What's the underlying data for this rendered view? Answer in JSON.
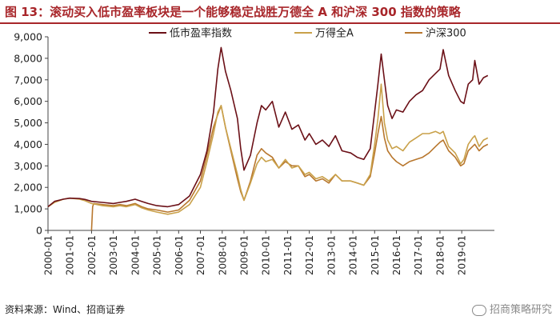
{
  "title": "图 13：滚动买入低市盈率板块是一个能够稳定战胜万德全 A 和沪深 300 指数的策略",
  "source": "资料来源：Wind、招商证券",
  "watermark": "招商策略研究",
  "chart_data": {
    "type": "line",
    "title": "图 13：滚动买入低市盈率板块是一个能够稳定战胜万德全 A 和沪深 300 指数的策略",
    "xlabel": "",
    "ylabel": "",
    "ylim": [
      0,
      9000
    ],
    "yticks": [
      0,
      1000,
      2000,
      3000,
      4000,
      5000,
      6000,
      7000,
      8000,
      9000
    ],
    "ytick_labels": [
      "0",
      "1,000",
      "2,000",
      "3,000",
      "4,000",
      "5,000",
      "6,000",
      "7,000",
      "8,000",
      "9,000"
    ],
    "xlim": [
      2000.0,
      2020.5
    ],
    "xticks": [
      "2000-01",
      "2001-01",
      "2002-01",
      "2003-01",
      "2004-01",
      "2005-01",
      "2006-01",
      "2007-01",
      "2008-01",
      "2009-01",
      "2010-01",
      "2011-01",
      "2012-01",
      "2013-01",
      "2014-01",
      "2015-01",
      "2016-01",
      "2017-01",
      "2018-01",
      "2019-01"
    ],
    "grid": false,
    "legend_position": "top",
    "series": [
      {
        "name": "低市盈率指数",
        "color": "#6b1017",
        "x": [
          2000.0,
          2000.3,
          2000.7,
          2001.0,
          2001.45,
          2001.7,
          2002.0,
          2002.5,
          2003.0,
          2003.3,
          2003.6,
          2004.0,
          2004.3,
          2004.6,
          2005.0,
          2005.5,
          2006.0,
          2006.5,
          2007.0,
          2007.3,
          2007.6,
          2007.8,
          2007.95,
          2008.15,
          2008.4,
          2008.7,
          2008.85,
          2009.0,
          2009.3,
          2009.6,
          2009.8,
          2010.0,
          2010.3,
          2010.6,
          2010.9,
          2011.2,
          2011.5,
          2011.8,
          2012.0,
          2012.3,
          2012.6,
          2012.9,
          2013.2,
          2013.5,
          2013.9,
          2014.2,
          2014.5,
          2014.8,
          2015.0,
          2015.15,
          2015.3,
          2015.45,
          2015.6,
          2015.8,
          2016.0,
          2016.3,
          2016.6,
          2016.9,
          2017.2,
          2017.5,
          2017.8,
          2018.0,
          2018.15,
          2018.4,
          2018.7,
          2018.95,
          2019.1,
          2019.3,
          2019.5,
          2019.6,
          2019.8,
          2020.0,
          2020.2
        ],
        "values": [
          1100,
          1350,
          1450,
          1500,
          1480,
          1440,
          1350,
          1300,
          1250,
          1300,
          1350,
          1450,
          1350,
          1250,
          1150,
          1100,
          1200,
          1600,
          2600,
          3700,
          5500,
          7500,
          8500,
          7400,
          6500,
          5200,
          3800,
          2800,
          3500,
          5000,
          5800,
          5600,
          6000,
          4800,
          5500,
          4700,
          4900,
          4200,
          4500,
          4000,
          4200,
          3900,
          4400,
          3700,
          3600,
          3400,
          3300,
          3800,
          5500,
          6800,
          8200,
          7000,
          5800,
          5200,
          5600,
          5500,
          6000,
          6300,
          6500,
          7000,
          7300,
          7500,
          8400,
          7200,
          6500,
          6000,
          5900,
          6800,
          7000,
          7900,
          6800,
          7100,
          7200
        ]
      },
      {
        "name": "万得全A",
        "color": "#c9a14a",
        "x": [
          2000.0,
          2000.3,
          2000.7,
          2001.0,
          2001.45,
          2001.7,
          2002.0,
          2002.5,
          2003.0,
          2003.3,
          2003.6,
          2004.0,
          2004.3,
          2004.6,
          2005.0,
          2005.5,
          2006.0,
          2006.5,
          2007.0,
          2007.3,
          2007.6,
          2007.8,
          2007.95,
          2008.15,
          2008.4,
          2008.7,
          2008.85,
          2009.0,
          2009.3,
          2009.6,
          2009.8,
          2010.0,
          2010.3,
          2010.6,
          2010.9,
          2011.2,
          2011.5,
          2011.8,
          2012.0,
          2012.3,
          2012.6,
          2012.9,
          2013.2,
          2013.5,
          2013.9,
          2014.2,
          2014.5,
          2014.8,
          2015.0,
          2015.15,
          2015.3,
          2015.45,
          2015.6,
          2015.8,
          2016.0,
          2016.3,
          2016.6,
          2016.9,
          2017.2,
          2017.5,
          2017.8,
          2018.0,
          2018.15,
          2018.4,
          2018.7,
          2018.95,
          2019.1,
          2019.3,
          2019.5,
          2019.6,
          2019.8,
          2020.0,
          2020.2
        ],
        "values": [
          1100,
          1300,
          1450,
          1500,
          1450,
          1380,
          1250,
          1150,
          1100,
          1150,
          1100,
          1200,
          1050,
          950,
          850,
          750,
          850,
          1200,
          2000,
          3200,
          4500,
          5500,
          5800,
          4800,
          3800,
          2600,
          1900,
          1400,
          2200,
          3100,
          3400,
          3200,
          3300,
          2900,
          3300,
          2900,
          3000,
          2600,
          2700,
          2400,
          2500,
          2300,
          2600,
          2300,
          2300,
          2200,
          2100,
          2600,
          4000,
          5200,
          6800,
          5000,
          4200,
          3800,
          3900,
          3700,
          4100,
          4300,
          4500,
          4500,
          4600,
          4500,
          4600,
          3900,
          3600,
          3100,
          3300,
          4000,
          4300,
          4400,
          3900,
          4200,
          4300
        ]
      },
      {
        "name": "沪深300",
        "color": "#b8772e",
        "x": [
          2002.0,
          2002.05,
          2002.1,
          2002.5,
          2003.0,
          2003.3,
          2003.6,
          2004.0,
          2004.3,
          2004.6,
          2005.0,
          2005.5,
          2006.0,
          2006.5,
          2007.0,
          2007.3,
          2007.6,
          2007.8,
          2007.95,
          2008.15,
          2008.4,
          2008.7,
          2008.85,
          2009.0,
          2009.3,
          2009.6,
          2009.8,
          2010.0,
          2010.3,
          2010.6,
          2010.9,
          2011.2,
          2011.5,
          2011.8,
          2012.0,
          2012.3,
          2012.6,
          2012.9,
          2013.2,
          2013.5,
          2013.9,
          2014.2,
          2014.5,
          2014.8,
          2015.0,
          2015.15,
          2015.3,
          2015.45,
          2015.6,
          2015.8,
          2016.0,
          2016.3,
          2016.6,
          2016.9,
          2017.2,
          2017.5,
          2017.8,
          2018.0,
          2018.15,
          2018.4,
          2018.7,
          2018.95,
          2019.1,
          2019.3,
          2019.5,
          2019.6,
          2019.8,
          2020.0,
          2020.2
        ],
        "values": [
          0,
          1100,
          1250,
          1200,
          1150,
          1200,
          1150,
          1250,
          1100,
          1000,
          950,
          850,
          950,
          1400,
          2300,
          3500,
          4800,
          5400,
          5800,
          4800,
          3700,
          2400,
          1800,
          1400,
          2300,
          3500,
          3800,
          3600,
          3400,
          2900,
          3200,
          3000,
          3000,
          2500,
          2600,
          2300,
          2400,
          2200,
          2600,
          2300,
          2300,
          2200,
          2100,
          2500,
          3600,
          4500,
          5300,
          4300,
          3700,
          3400,
          3200,
          3000,
          3200,
          3300,
          3400,
          3600,
          3900,
          4100,
          4200,
          3700,
          3400,
          3000,
          3100,
          3700,
          3900,
          4000,
          3700,
          3900,
          4000
        ]
      }
    ]
  }
}
